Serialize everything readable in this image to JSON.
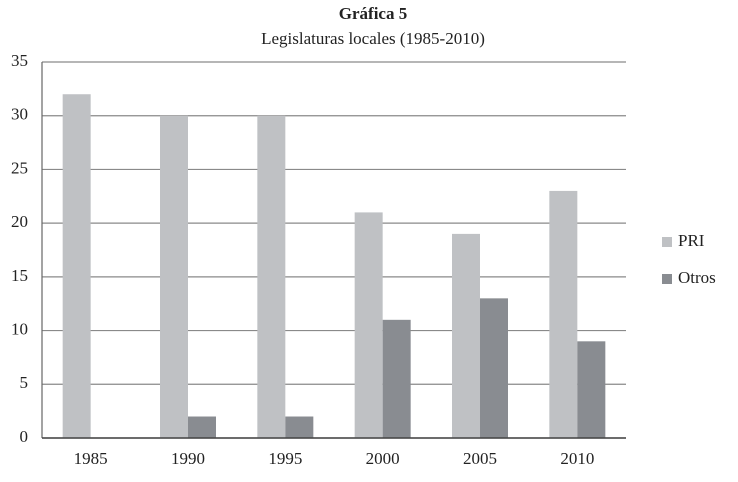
{
  "chart_data": {
    "type": "bar",
    "title": "Gráfica 5",
    "subtitle": "Legislaturas locales (1985-2010)",
    "categories": [
      "1985",
      "1990",
      "1995",
      "2000",
      "2005",
      "2010"
    ],
    "series": [
      {
        "name": "PRI",
        "color": "#bfc1c4",
        "values": [
          32,
          30,
          30,
          21,
          19,
          23
        ]
      },
      {
        "name": "Otros",
        "color": "#898c91",
        "values": [
          0,
          2,
          2,
          11,
          13,
          9
        ]
      }
    ],
    "ylim": [
      0,
      35
    ],
    "yticks": [
      0,
      5,
      10,
      15,
      20,
      25,
      30,
      35
    ],
    "grid": true,
    "legend": "right"
  }
}
